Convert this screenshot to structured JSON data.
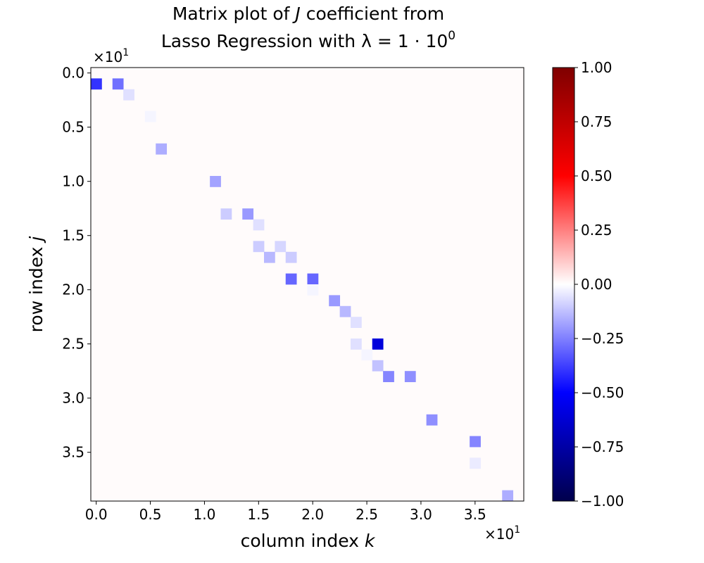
{
  "chart_data": {
    "type": "heatmap",
    "title_line1_prefix": "Matrix plot of ",
    "title_line1_symbol": "J",
    "title_line1_suffix": " coefficient from",
    "title_line2_prefix": "Lasso Regression with ",
    "title_line2_formula": "λ = 1 · 10",
    "title_line2_exponent": "0",
    "xlabel_prefix": "column index ",
    "xlabel_symbol": "k",
    "ylabel_prefix": "row index ",
    "ylabel_symbol": "j",
    "x_offset_base": "×10",
    "x_offset_exp": "1",
    "y_offset_base": "×10",
    "y_offset_exp": "1",
    "n_rows": 40,
    "n_cols": 40,
    "background_value": 0.0,
    "xticks": [
      0,
      5,
      10,
      15,
      20,
      25,
      30,
      35
    ],
    "xtick_labels": [
      "0.0",
      "0.5",
      "1.0",
      "1.5",
      "2.0",
      "2.5",
      "3.0",
      "3.5"
    ],
    "yticks": [
      0,
      5,
      10,
      15,
      20,
      25,
      30,
      35
    ],
    "ytick_labels": [
      "0.0",
      "0.5",
      "1.0",
      "1.5",
      "2.0",
      "2.5",
      "3.0",
      "3.5"
    ],
    "nonzero_cells": [
      {
        "row": 1,
        "col": 0,
        "value": -0.4
      },
      {
        "row": 1,
        "col": 2,
        "value": -0.28
      },
      {
        "row": 2,
        "col": 3,
        "value": -0.06
      },
      {
        "row": 4,
        "col": 5,
        "value": -0.02
      },
      {
        "row": 7,
        "col": 6,
        "value": -0.16
      },
      {
        "row": 10,
        "col": 11,
        "value": -0.18
      },
      {
        "row": 13,
        "col": 12,
        "value": -0.1
      },
      {
        "row": 13,
        "col": 14,
        "value": -0.2
      },
      {
        "row": 14,
        "col": 15,
        "value": -0.06
      },
      {
        "row": 16,
        "col": 15,
        "value": -0.1
      },
      {
        "row": 16,
        "col": 17,
        "value": -0.08
      },
      {
        "row": 17,
        "col": 16,
        "value": -0.14
      },
      {
        "row": 17,
        "col": 18,
        "value": -0.1
      },
      {
        "row": 19,
        "col": 18,
        "value": -0.3
      },
      {
        "row": 19,
        "col": 20,
        "value": -0.3
      },
      {
        "row": 20,
        "col": 20,
        "value": -0.02
      },
      {
        "row": 21,
        "col": 22,
        "value": -0.2
      },
      {
        "row": 22,
        "col": 23,
        "value": -0.14
      },
      {
        "row": 23,
        "col": 24,
        "value": -0.06
      },
      {
        "row": 25,
        "col": 24,
        "value": -0.06
      },
      {
        "row": 25,
        "col": 26,
        "value": -0.6
      },
      {
        "row": 26,
        "col": 25,
        "value": -0.02
      },
      {
        "row": 27,
        "col": 26,
        "value": -0.12
      },
      {
        "row": 28,
        "col": 27,
        "value": -0.24
      },
      {
        "row": 28,
        "col": 29,
        "value": -0.22
      },
      {
        "row": 32,
        "col": 31,
        "value": -0.22
      },
      {
        "row": 34,
        "col": 35,
        "value": -0.24
      },
      {
        "row": 36,
        "col": 35,
        "value": -0.04
      },
      {
        "row": 39,
        "col": 38,
        "value": -0.16
      }
    ],
    "colorbar": {
      "cmap": "seismic",
      "vmin": -1.0,
      "vmax": 1.0,
      "ticks": [
        -1.0,
        -0.75,
        -0.5,
        -0.25,
        0.0,
        0.25,
        0.5,
        0.75,
        1.0
      ],
      "tick_labels": [
        "−1.00",
        "−0.75",
        "−0.50",
        "−0.25",
        "0.00",
        "0.25",
        "0.50",
        "0.75",
        "1.00"
      ]
    },
    "colors": {
      "seismic_low": "#00004c",
      "seismic_mid_low": "#0000ff",
      "seismic_mid": "#ffffff",
      "seismic_mid_high": "#ff0000",
      "seismic_high": "#7f0000"
    }
  }
}
